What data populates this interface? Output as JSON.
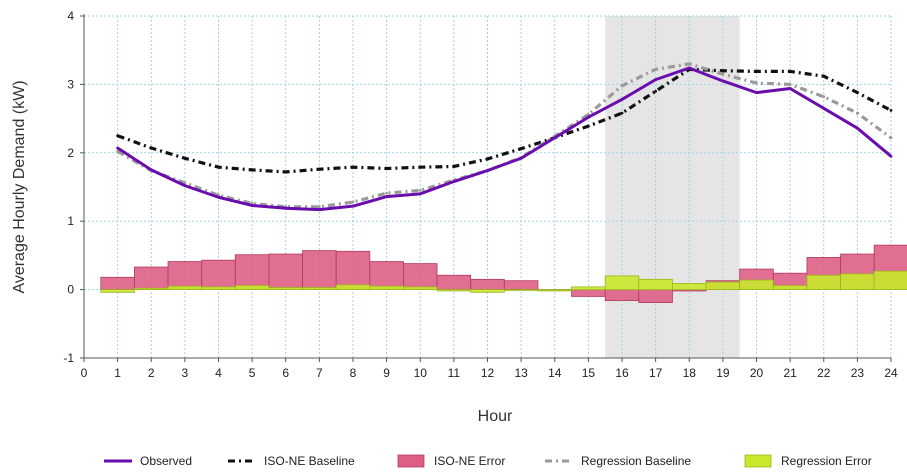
{
  "chart_data": {
    "type": "line",
    "xlabel": "Hour",
    "ylabel": "Average Hourly Demand (kW)",
    "xlim": [
      0,
      24
    ],
    "ylim": [
      -1,
      4
    ],
    "x_ticks": [
      0,
      1,
      2,
      3,
      4,
      5,
      6,
      7,
      8,
      9,
      10,
      11,
      12,
      13,
      14,
      15,
      16,
      17,
      18,
      19,
      20,
      21,
      22,
      23,
      24
    ],
    "y_ticks": [
      -1,
      0,
      1,
      2,
      3,
      4
    ],
    "grid": true,
    "legend_position": "bottom",
    "highlight_band": {
      "x": [
        15.5,
        19.5
      ],
      "color": "#e5e5e5"
    },
    "x": [
      1,
      2,
      3,
      4,
      5,
      6,
      7,
      8,
      9,
      10,
      11,
      12,
      13,
      14,
      15,
      16,
      17,
      18,
      19,
      20,
      21,
      22,
      23,
      24
    ],
    "series": [
      {
        "name": "Observed",
        "kind": "line",
        "color": "#6a0dad",
        "style": "solid",
        "values": [
          2.07,
          1.75,
          1.52,
          1.35,
          1.23,
          1.19,
          1.17,
          1.22,
          1.36,
          1.4,
          1.58,
          1.74,
          1.92,
          2.22,
          2.52,
          2.78,
          3.07,
          3.24,
          3.05,
          2.88,
          2.94,
          2.65,
          2.36,
          1.95
        ]
      },
      {
        "name": "ISO-NE Baseline",
        "kind": "line",
        "color": "#111111",
        "style": "dashdot",
        "values": [
          2.25,
          2.07,
          1.92,
          1.79,
          1.75,
          1.72,
          1.76,
          1.79,
          1.77,
          1.79,
          1.8,
          1.91,
          2.06,
          2.22,
          2.39,
          2.58,
          2.9,
          3.22,
          3.2,
          3.19,
          3.19,
          3.12,
          2.88,
          2.62
        ]
      },
      {
        "name": "ISO-NE Error",
        "kind": "bar",
        "color": "#de5f86",
        "edge": "#b03a5b",
        "values": [
          0.18,
          0.33,
          0.41,
          0.43,
          0.51,
          0.52,
          0.57,
          0.56,
          0.41,
          0.38,
          0.21,
          0.15,
          0.13,
          -0.01,
          -0.1,
          -0.16,
          -0.19,
          -0.02,
          0.13,
          0.3,
          0.24,
          0.47,
          0.52,
          0.65
        ]
      },
      {
        "name": "Regression Baseline",
        "kind": "line",
        "color": "#9a9a9a",
        "style": "dashdot",
        "values": [
          2.02,
          1.74,
          1.56,
          1.38,
          1.26,
          1.21,
          1.21,
          1.28,
          1.41,
          1.45,
          1.6,
          1.74,
          1.93,
          2.24,
          2.56,
          2.98,
          3.22,
          3.3,
          3.15,
          3.02,
          3.0,
          2.82,
          2.58,
          2.22
        ]
      },
      {
        "name": "Regression Error",
        "kind": "bar",
        "color": "#c9e82c",
        "edge": "#9ab51a",
        "values": [
          -0.04,
          0.02,
          0.05,
          0.04,
          0.06,
          0.03,
          0.03,
          0.07,
          0.05,
          0.04,
          -0.02,
          -0.04,
          0.0,
          -0.02,
          0.04,
          0.2,
          0.15,
          0.09,
          0.11,
          0.14,
          0.06,
          0.21,
          0.23,
          0.27
        ]
      }
    ]
  }
}
